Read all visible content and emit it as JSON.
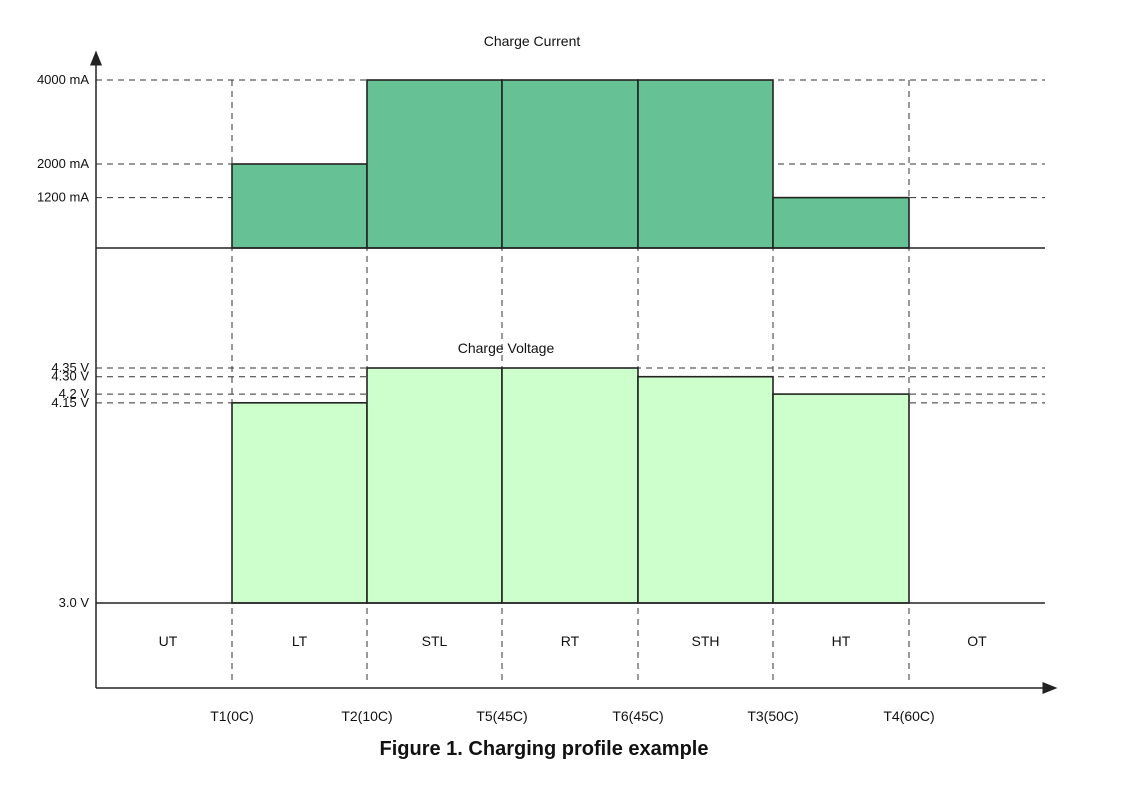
{
  "caption": "Figure 1. Charging profile example",
  "colors": {
    "current_fill": "#66c194",
    "voltage_fill": "#ccffcc",
    "line": "#222222"
  },
  "chart_data": [
    {
      "type": "bar",
      "title": "Charge Current",
      "categories": [
        "UT",
        "LT",
        "STL",
        "RT",
        "STH",
        "HT",
        "OT"
      ],
      "values": [
        0,
        2000,
        4000,
        4000,
        4000,
        1200,
        0
      ],
      "unit": "mA",
      "tick_labels": [
        {
          "value": 4000,
          "label": "4000 mA"
        },
        {
          "value": 2000,
          "label": "2000 mA"
        },
        {
          "value": 1200,
          "label": "1200 mA"
        }
      ],
      "ylim": [
        0,
        4000
      ]
    },
    {
      "type": "bar",
      "title": "Charge Voltage",
      "categories": [
        "UT",
        "LT",
        "STL",
        "RT",
        "STH",
        "HT",
        "OT"
      ],
      "values": [
        null,
        4.15,
        4.35,
        4.35,
        4.3,
        4.2,
        null
      ],
      "unit": "V",
      "tick_labels": [
        {
          "value": 4.35,
          "label": "4.35 V"
        },
        {
          "value": 4.3,
          "label": "4.30 V"
        },
        {
          "value": 4.2,
          "label": "4.2 V"
        },
        {
          "value": 4.15,
          "label": "4.15 V"
        },
        {
          "value": 3.0,
          "label": "3.0  V"
        }
      ],
      "ylim": [
        3.0,
        4.35
      ]
    }
  ],
  "temperature_boundaries": [
    "T1(0C)",
    "T2(10C)",
    "T5(45C)",
    "T6(45C)",
    "T3(50C)",
    "T4(60C)"
  ]
}
